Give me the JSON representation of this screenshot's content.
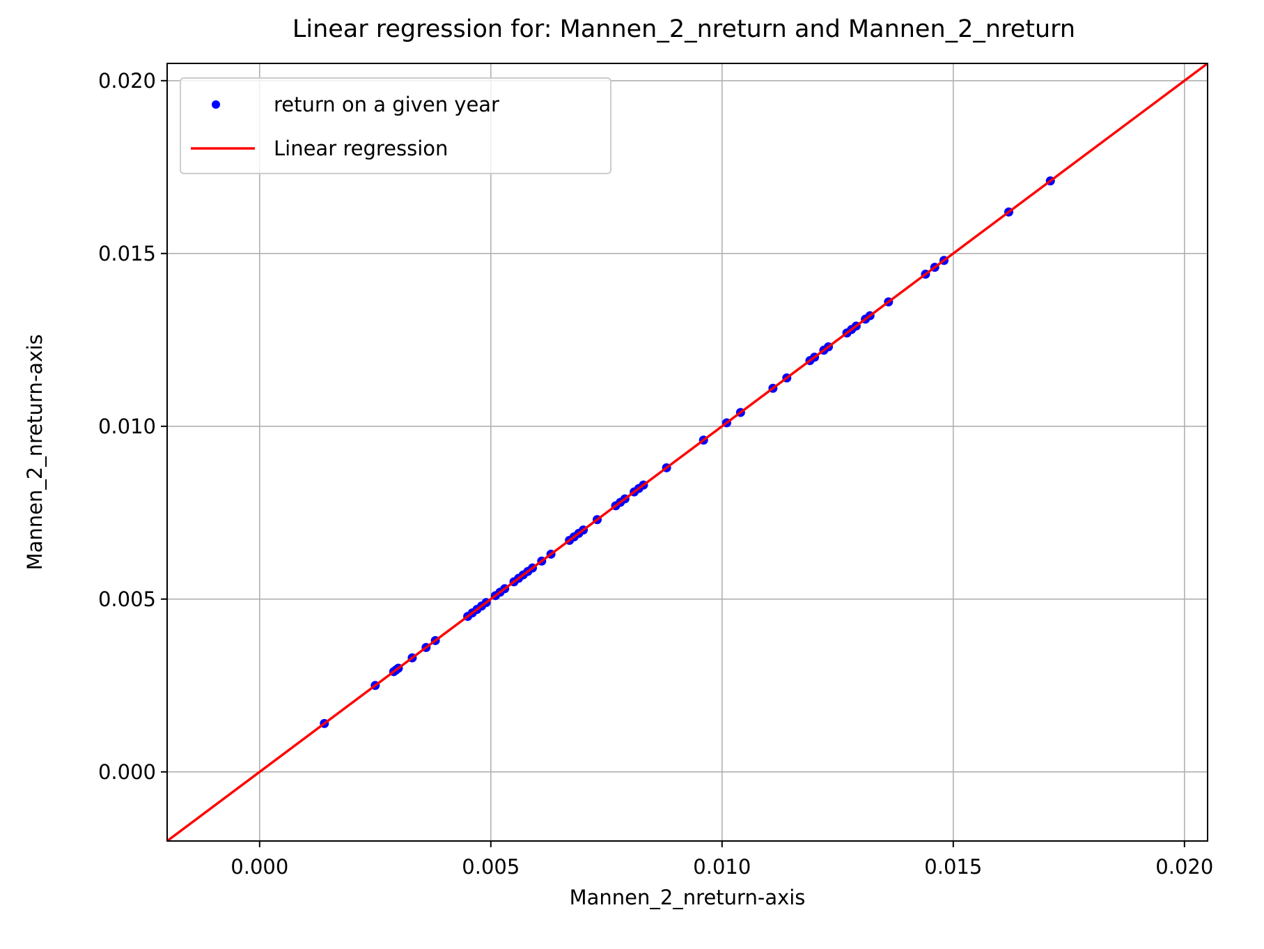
{
  "chart_data": {
    "type": "scatter",
    "title": "Linear regression for: Mannen_2_nreturn and Mannen_2_nreturn",
    "xlabel": "Mannen_2_nreturn-axis",
    "ylabel": "Mannen_2_nreturn-axis",
    "xlim": [
      -0.002,
      0.0205
    ],
    "ylim": [
      -0.002,
      0.0205
    ],
    "x_ticks": [
      "0.000",
      "0.005",
      "0.010",
      "0.015",
      "0.020"
    ],
    "y_ticks": [
      "0.000",
      "0.005",
      "0.010",
      "0.015",
      "0.020"
    ],
    "x_tick_values": [
      0.0,
      0.005,
      0.01,
      0.015,
      0.02
    ],
    "y_tick_values": [
      0.0,
      0.005,
      0.01,
      0.015,
      0.02
    ],
    "grid": true,
    "legend_position": "top-left",
    "series": [
      {
        "name": "return on a given year",
        "kind": "scatter",
        "color": "#0000ff",
        "x": [
          0.0014,
          0.0025,
          0.0029,
          0.00295,
          0.003,
          0.0033,
          0.0036,
          0.0038,
          0.0045,
          0.0046,
          0.0047,
          0.0048,
          0.0049,
          0.0051,
          0.0052,
          0.0053,
          0.0055,
          0.0056,
          0.0057,
          0.0058,
          0.0059,
          0.0061,
          0.0063,
          0.0067,
          0.0068,
          0.0069,
          0.007,
          0.0073,
          0.0077,
          0.0078,
          0.0079,
          0.0081,
          0.0082,
          0.0083,
          0.0088,
          0.0096,
          0.0101,
          0.0104,
          0.0111,
          0.0114,
          0.0119,
          0.012,
          0.0122,
          0.0123,
          0.0127,
          0.0128,
          0.0129,
          0.0131,
          0.0132,
          0.0136,
          0.0144,
          0.0146,
          0.0148,
          0.0162,
          0.0171
        ],
        "y": [
          0.0014,
          0.0025,
          0.0029,
          0.00295,
          0.003,
          0.0033,
          0.0036,
          0.0038,
          0.0045,
          0.0046,
          0.0047,
          0.0048,
          0.0049,
          0.0051,
          0.0052,
          0.0053,
          0.0055,
          0.0056,
          0.0057,
          0.0058,
          0.0059,
          0.0061,
          0.0063,
          0.0067,
          0.0068,
          0.0069,
          0.007,
          0.0073,
          0.0077,
          0.0078,
          0.0079,
          0.0081,
          0.0082,
          0.0083,
          0.0088,
          0.0096,
          0.0101,
          0.0104,
          0.0111,
          0.0114,
          0.0119,
          0.012,
          0.0122,
          0.0123,
          0.0127,
          0.0128,
          0.0129,
          0.0131,
          0.0132,
          0.0136,
          0.0144,
          0.0146,
          0.0148,
          0.0162,
          0.0171
        ]
      },
      {
        "name": "Linear regression",
        "kind": "line",
        "color": "#ff0000",
        "slope": 1.0,
        "intercept": 0.0
      }
    ]
  }
}
